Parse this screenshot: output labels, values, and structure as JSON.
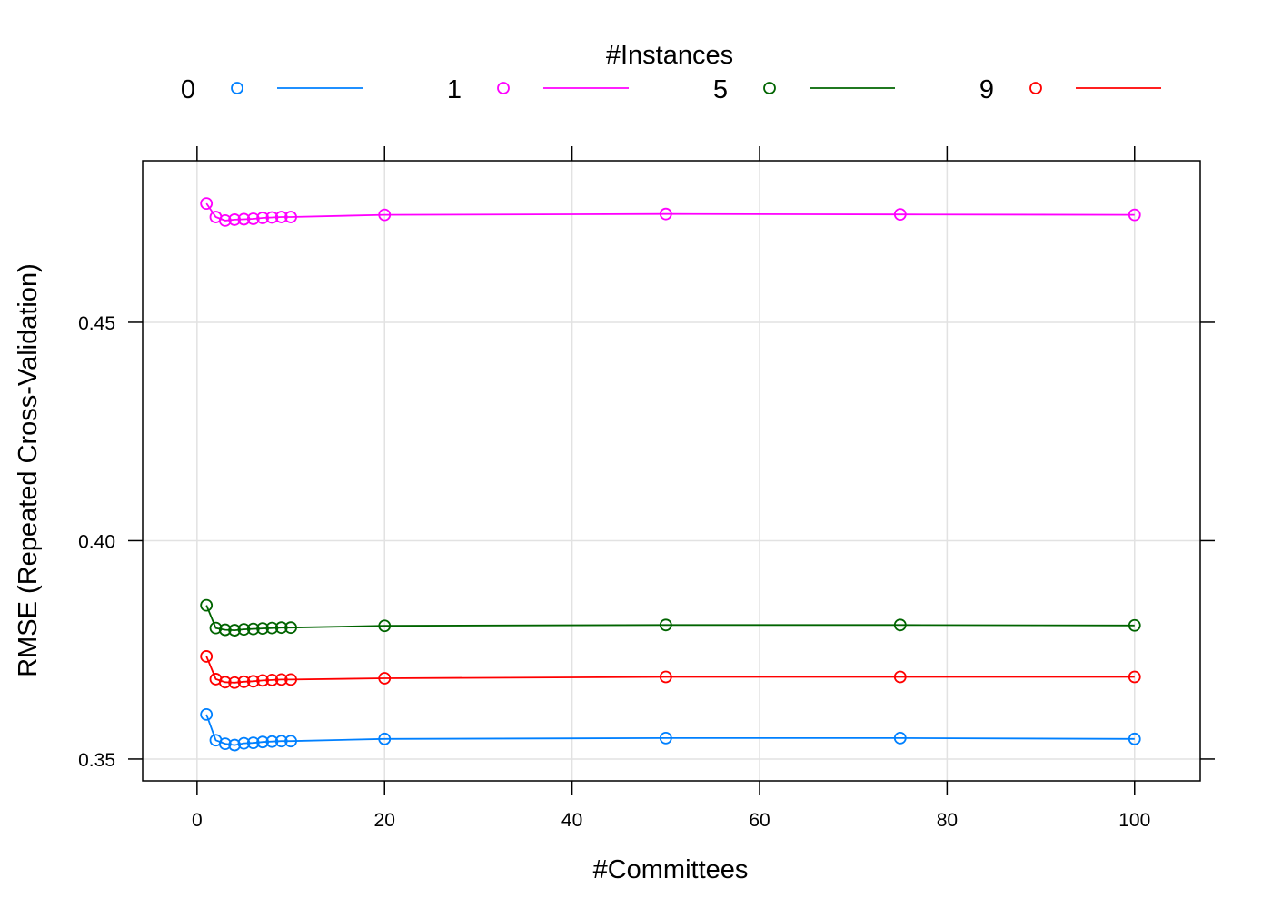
{
  "chart_data": {
    "type": "line",
    "xlabel": "#Committees",
    "ylabel": "RMSE (Repeated Cross-Validation)",
    "xlim": [
      -5.8,
      107
    ],
    "ylim": [
      0.345,
      0.487
    ],
    "xticks": [
      0,
      20,
      40,
      60,
      80,
      100
    ],
    "yticks": [
      0.35,
      0.4,
      0.45
    ],
    "xtick_labels": [
      "0",
      "20",
      "40",
      "60",
      "80",
      "100"
    ],
    "ytick_labels": [
      "0.35",
      "0.40",
      "0.45"
    ],
    "grid": true,
    "legend": {
      "title": "#Instances",
      "position": "top"
    },
    "x": [
      1,
      2,
      3,
      4,
      5,
      6,
      7,
      8,
      9,
      10,
      20,
      50,
      75,
      100
    ],
    "series": [
      {
        "name": "0",
        "color": "#0080ff",
        "values": [
          0.3602,
          0.3543,
          0.3535,
          0.3532,
          0.3536,
          0.3537,
          0.3539,
          0.354,
          0.3541,
          0.3541,
          0.3546,
          0.3548,
          0.3548,
          0.3546
        ]
      },
      {
        "name": "1",
        "color": "#ff00ff",
        "values": [
          0.4772,
          0.4741,
          0.4733,
          0.4735,
          0.4736,
          0.4737,
          0.4739,
          0.474,
          0.4741,
          0.4741,
          0.4746,
          0.4748,
          0.4747,
          0.4746
        ]
      },
      {
        "name": "5",
        "color": "#006400",
        "values": [
          0.3852,
          0.38,
          0.3796,
          0.3795,
          0.3797,
          0.3798,
          0.3799,
          0.38,
          0.3801,
          0.3801,
          0.3805,
          0.3807,
          0.3807,
          0.3806
        ]
      },
      {
        "name": "9",
        "color": "#ff0000",
        "values": [
          0.3735,
          0.3683,
          0.3676,
          0.3675,
          0.3677,
          0.3678,
          0.368,
          0.3681,
          0.3682,
          0.3682,
          0.3685,
          0.3688,
          0.3688,
          0.3688
        ]
      }
    ]
  }
}
